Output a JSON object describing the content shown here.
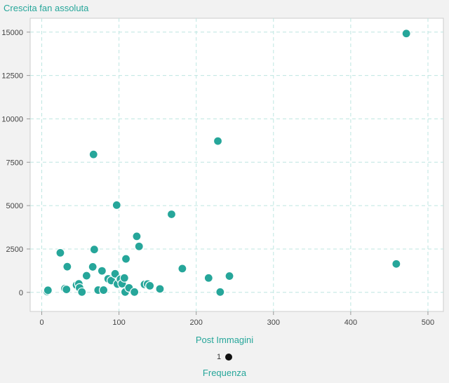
{
  "chart_data": {
    "type": "scatter",
    "ylabel": "Crescita fan assoluta",
    "xlabel": "Post Immagini",
    "xlim": [
      -15,
      520
    ],
    "ylim": [
      -1100,
      15800
    ],
    "xticks": [
      0,
      100,
      200,
      300,
      400,
      500
    ],
    "yticks": [
      0,
      2500,
      5000,
      7500,
      10000,
      12500,
      15000
    ],
    "grid": true,
    "point_color": "#26a69a",
    "legend_title": "Frequenza",
    "legend_value": "1",
    "points": [
      {
        "x": 7,
        "y": 50
      },
      {
        "x": 8,
        "y": 120
      },
      {
        "x": 24,
        "y": 2280
      },
      {
        "x": 30,
        "y": 220
      },
      {
        "x": 32,
        "y": 170
      },
      {
        "x": 33,
        "y": 1480
      },
      {
        "x": 45,
        "y": 420
      },
      {
        "x": 48,
        "y": 490
      },
      {
        "x": 49,
        "y": 260
      },
      {
        "x": 52,
        "y": 20
      },
      {
        "x": 58,
        "y": 960
      },
      {
        "x": 66,
        "y": 1470
      },
      {
        "x": 67,
        "y": 7950
      },
      {
        "x": 68,
        "y": 2470
      },
      {
        "x": 73,
        "y": 130
      },
      {
        "x": 78,
        "y": 1240
      },
      {
        "x": 80,
        "y": 130
      },
      {
        "x": 86,
        "y": 780
      },
      {
        "x": 90,
        "y": 680
      },
      {
        "x": 95,
        "y": 1070
      },
      {
        "x": 97,
        "y": 5030
      },
      {
        "x": 98,
        "y": 480
      },
      {
        "x": 102,
        "y": 760
      },
      {
        "x": 104,
        "y": 500
      },
      {
        "x": 107,
        "y": 830
      },
      {
        "x": 108,
        "y": 20
      },
      {
        "x": 109,
        "y": 1930
      },
      {
        "x": 113,
        "y": 260
      },
      {
        "x": 120,
        "y": 20
      },
      {
        "x": 123,
        "y": 3230
      },
      {
        "x": 126,
        "y": 2650
      },
      {
        "x": 133,
        "y": 460
      },
      {
        "x": 137,
        "y": 480
      },
      {
        "x": 140,
        "y": 380
      },
      {
        "x": 153,
        "y": 200
      },
      {
        "x": 168,
        "y": 4500
      },
      {
        "x": 182,
        "y": 1370
      },
      {
        "x": 216,
        "y": 830
      },
      {
        "x": 228,
        "y": 8720
      },
      {
        "x": 231,
        "y": 20
      },
      {
        "x": 243,
        "y": 940
      },
      {
        "x": 459,
        "y": 1640
      },
      {
        "x": 472,
        "y": 14920
      }
    ]
  }
}
